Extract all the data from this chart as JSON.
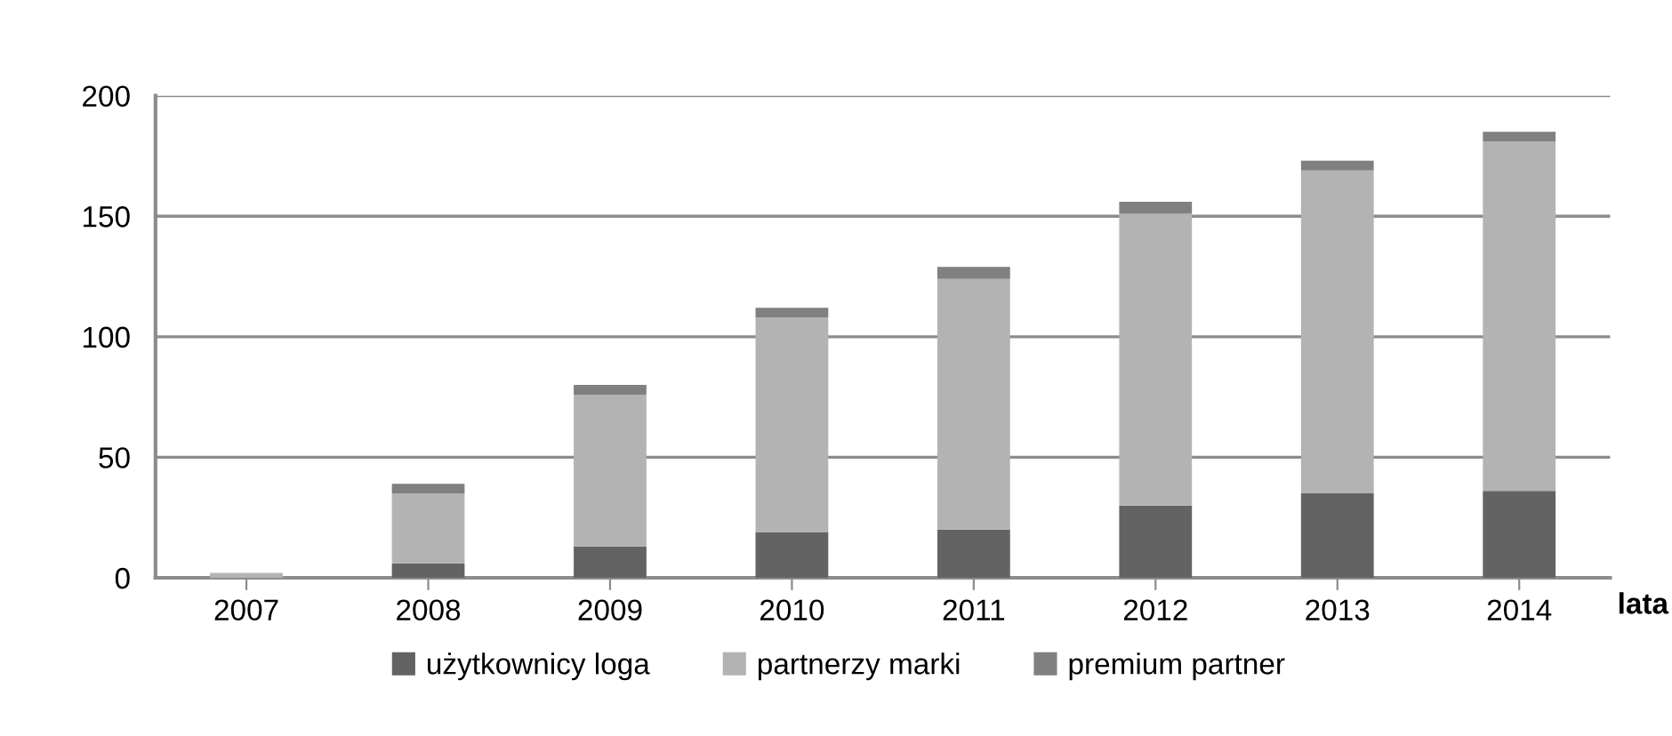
{
  "chart_data": {
    "type": "bar",
    "stacked": true,
    "xlabel": "lata",
    "categories": [
      "2007",
      "2008",
      "2009",
      "2010",
      "2011",
      "2012",
      "2013",
      "2014"
    ],
    "series": [
      {
        "name": "użytkownicy loga",
        "color": "#636363",
        "values": [
          0,
          6,
          13,
          19,
          20,
          30,
          35,
          36
        ]
      },
      {
        "name": "partnerzy marki",
        "color": "#b3b3b3",
        "values": [
          2,
          29,
          63,
          89,
          104,
          121,
          134,
          145
        ]
      },
      {
        "name": "premium partner",
        "color": "#808080",
        "values": [
          0,
          4,
          4,
          4,
          5,
          5,
          4,
          4
        ]
      }
    ],
    "ylim": [
      0,
      200
    ],
    "yticks": [
      0,
      50,
      100,
      150,
      200
    ],
    "grid": "y",
    "legend": "bottom"
  }
}
